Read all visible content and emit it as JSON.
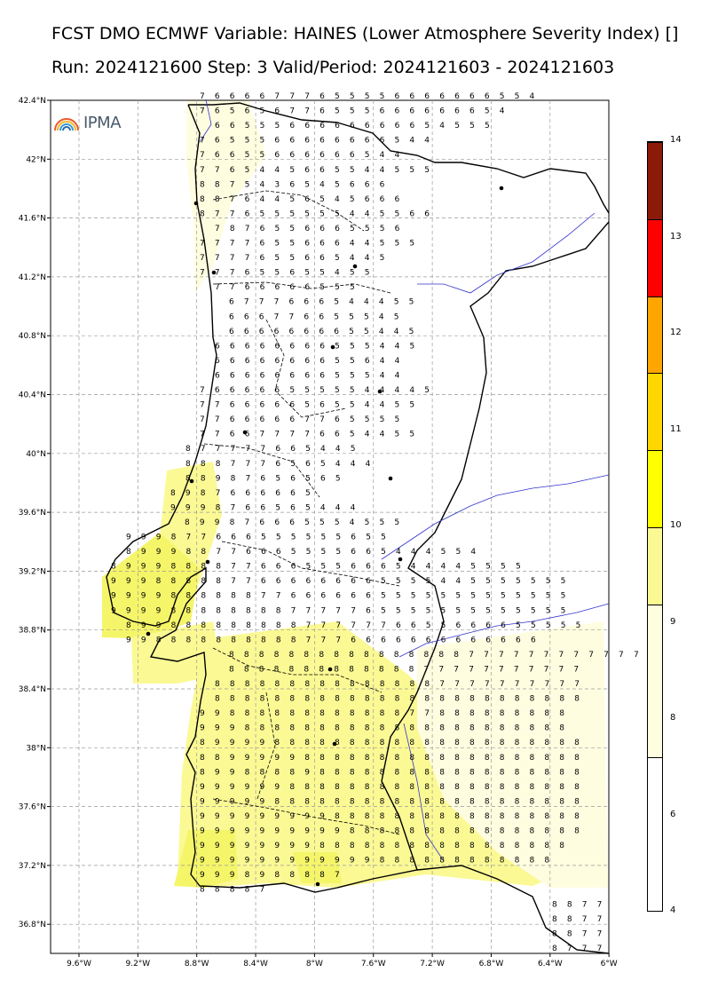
{
  "title_line1": "FCST DMO ECMWF Variable: HAINES (Lower Atmosphere Severity Index) []",
  "title_line2": "Run: 2024121600 Step: 3 Valid/Period: 2024121603 - 2024121603",
  "logo_text": "IPMA",
  "lat_ticks": [
    "42.4°N",
    "42°N",
    "41.6°N",
    "41.2°N",
    "40.8°N",
    "40.4°N",
    "40°N",
    "39.6°N",
    "39.2°N",
    "38.8°N",
    "38.4°N",
    "38°N",
    "37.6°N",
    "37.2°N",
    "36.8°N"
  ],
  "lon_ticks": [
    "9.6°W",
    "9.2°W",
    "8.8°W",
    "8.4°W",
    "8°W",
    "7.6°W",
    "7.2°W",
    "6.8°W",
    "6.4°W",
    "6°W"
  ],
  "colorbar": {
    "labels": [
      "4",
      "6",
      "8",
      "9",
      "10",
      "11",
      "12",
      "13",
      "14"
    ],
    "segments": [
      {
        "value": "4-6",
        "color": "#ffffff"
      },
      {
        "value": "6-8",
        "color": "#fffde0"
      },
      {
        "value": "8-9",
        "color": "#fbf994"
      },
      {
        "value": "9-10",
        "color": "#ffff00"
      },
      {
        "value": "10-11",
        "color": "#ffd700"
      },
      {
        "value": "11-12",
        "color": "#ffa500"
      },
      {
        "value": "12-13",
        "color": "#ff0000"
      },
      {
        "value": "13-14",
        "color": "#8b1a08"
      }
    ]
  },
  "grid_rows": [
    "7 6 6 6 6 7 7 7 6 5 5 5 5 6 6 6 6 6 6 6 5 5 4",
    "7 6 5 6 5 6 7 7 6 5 5 5 6 6 6 6 6 6 6 5 4",
    "6 6 5 5 5 6 6 6 6 6 6 6 6 6 5 4 5 5 5",
    "7 6 5 5 5 6 6 6 6 6 6 6 6 5 4 4",
    "7 6 6 5 5 6 6 6 6 6 6 5 4 4",
    "7 7 6 5 4 4 5 6 6 5 5 4 4 5 5 5",
    "8 8 7 5 4 3 6 5 4 5 6 6 6",
    "8 8 7 6 4 4 5 6 5 4 5 6 6 6",
    "8 7 7 6 5 5 5 5 5 5 4 4 5 5 6 6",
    "7 8 7 6 5 5 6 6 6 5 5 5 6",
    "7 7 7 7 6 5 5 6 6 6 4 4 5 5 5",
    "7 7 7 7 6 5 5 6 6 5 4 4 5",
    "7 7 7 6 5 5 6 5 5 4 5 5",
    "7 7 6 6 6 6 6 5 5 5",
    "6 7 7 7 6 6 6 5 4 4 4 5 5",
    "6 6 6 7 7 6 6 5 5 5 4 5",
    "6 6 6 6 6 6 6 6 5 5 4 4 5",
    "6 6 6 6 6 6 6 6 5 5 5 4 4 5",
    "6 6 6 6 6 6 6 6 5 5 6 4 4",
    "6 6 6 6 6 6 6 6 5 5 5 4 4",
    "7 6 6 6 6 6 5 5 5 5 5 4 4 4 4 5",
    "7 7 6 6 6 6 6 5 6 5 5 4 4 5 5",
    "7 7 6 6 6 6 6 7 7 6 5 5 5 5",
    "7 7 6 6 7 7 7 7 6 6 5 4 4 5 5",
    "8 7 7 7 7 7 6 6 5 4 4 5",
    "8 8 8 7 7 7 6 5 6 5 4 4 4",
    "8 8 9 8 7 6 5 6 5 6 5",
    "8 9 8 7 6 6 6 6 6 5",
    "9 9 9 8 7 6 6 5 6 5 4 4 4",
    "8 9 9 8 7 6 6 6 5 5 5 4 5 5 5",
    "9 9 9 8 7 7 6 6 6 5 5 5 5 5 5 6 5 5",
    "8 9 9 9 8 8 7 7 6 6 6 5 5 5 5 6 6 5 4 4 4 5 5 4",
    "8 9 9 9 8 8 8 8 7 7 6 6 6 5 5 5 6 6 6 5 4 4 4 4 5 5 5 5",
    "9 9 9 8 8 8 8 8 7 7 6 6 6 6 6 6 6 6 5 5 5 5 4 4 5 5 5 5 5 5 5",
    "9 9 9 9 8 8 8 8 8 8 7 7 6 6 6 6 6 6 5 5 5 5 5 5 5 5 5 5 5 5 5",
    "9 9 9 9 8 8 8 8 8 8 8 8 7 7 7 7 7 6 5 5 5 5 5 5 5 5 5 5 5 5 5",
    "8 9 9 8 8 8 8 8 8 8 8 8 7 7 7 7 7 7 6 6 5 5 6 6 6 6 5 5 5 5 5",
    "9 9 8 8 8 8 8 8 8 8 8 8 7 7 7 6 6 6 6 6 6 6 6 6 6 6 6 6",
    "8 8 8 8 8 8 8 8 8 8 8 8 8 8 8 8 7 7 7 7 7 7 7 7 7 7 7 7",
    "8 8 8 8 8 8 8 8 8 8 8 8 8 7 7 7 7 7 7 7 7 7 7 7",
    "8 8 8 8 8 8 8 8 8 8 8 8 8 8 8 7 7 7 7 7 7 7 7 7 7",
    "8 8 8 8 8 8 8 8 8 8 8 8 8 8 8 8 8 8 8 8 8 8 8 8 8",
    "9 9 8 8 8 8 8 8 8 8 8 8 8 8 7 7 8 8 8 8 8 8 8 8 8",
    "9 9 9 8 8 8 8 8 8 8 8 8 8 8 8 8 8 8 8 8 8 8 8 8 8",
    "8 9 9 9 9 8 8 8 8 8 8 8 8 8 8 8 8 8 8 8 8 8 8 8 8 8",
    "8 8 9 9 9 9 9 8 8 8 8 8 8 8 8 8 8 8 8 8 8 8 8 8 8 8",
    "8 9 9 8 8 8 8 9 8 8 8 8 8 8 8 8 8 8 8 8 8 8 8 8 8 8",
    "9 9 9 9 9 9 8 8 8 8 8 8 8 8 8 8 8 8 8 8 8 8 8 8 8 8",
    "9 9 9 9 9 8 8 8 8 8 8 8 8 8 8 8 8 8 8 8 8 8 8 8 8 8",
    "9 9 9 9 9 9 9 9 9 8 8 8 8 8 8 8 8 8 8 8 8 8 8 8 8 8",
    "9 9 9 9 9 9 9 9 9 9 8 8 8 8 8 8 8 8 8 8 8 8 8 8 8 8",
    "9 9 9 9 9 9 9 9 8 8 8 8 8 8 8 8 8 8 8 8 8 8 8 8 8",
    "9 9 9 9 9 9 9 9 9 9 9 9 8 8 8 8 8 8 8 8 8 8 8 8",
    "9 9 9 8 9 8 8 8 8 7",
    "8 8 8 8 7",
    "8 8 7 7",
    "8 8 7 7",
    "8 8 7 7",
    "8 7 7 7"
  ]
}
